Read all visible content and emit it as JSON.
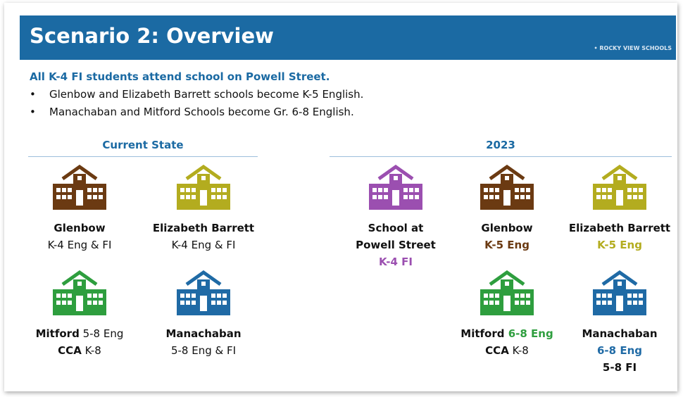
{
  "header": {
    "title": "Scenario 2: Overview",
    "brand": "• ROCKY VIEW SCHOOLS"
  },
  "lead": "All K-4 FI students attend school on Powell Street.",
  "bullets": [
    "Glenbow and Elizabeth Barrett schools become K-5 English.",
    "Manachaban and Mitford Schools become Gr. 6-8 English."
  ],
  "sections": [
    {
      "heading": "Current State",
      "schools": [
        {
          "color": "#6b3a12",
          "lines": [
            [
              {
                "text": "Glenbow",
                "bold": true
              }
            ],
            [
              {
                "text": "K-4 Eng & FI"
              }
            ]
          ]
        },
        {
          "color": "#b3ac1f",
          "lines": [
            [
              {
                "text": "Elizabeth Barrett",
                "bold": true
              }
            ],
            [
              {
                "text": "K-4 Eng & FI"
              }
            ]
          ]
        },
        {
          "color": "#2e9e3e",
          "lines": [
            [
              {
                "text": "Mitford",
                "bold": true
              },
              {
                "text": " 5-8 Eng"
              }
            ],
            [
              {
                "text": "CCA",
                "bold": true
              },
              {
                "text": " K-8"
              }
            ]
          ]
        },
        {
          "color": "#1f6aa5",
          "lines": [
            [
              {
                "text": "Manachaban",
                "bold": true
              }
            ],
            [
              {
                "text": "5-8 Eng & FI"
              }
            ]
          ]
        }
      ]
    },
    {
      "heading": "2023",
      "schools": [
        {
          "color": "#9b4fb0",
          "lines": [
            [
              {
                "text": "School at",
                "bold": true
              }
            ],
            [
              {
                "text": "Powell Street",
                "bold": true
              }
            ],
            [
              {
                "text": "K-4 FI",
                "bold": true,
                "color": "#9b4fb0"
              }
            ]
          ]
        },
        {
          "color": "#6b3a12",
          "lines": [
            [
              {
                "text": "Glenbow",
                "bold": true
              }
            ],
            [
              {
                "text": "K-5 Eng",
                "bold": true,
                "color": "#6b3a12"
              }
            ]
          ]
        },
        {
          "color": "#b3ac1f",
          "lines": [
            [
              {
                "text": "Elizabeth Barrett",
                "bold": true
              }
            ],
            [
              {
                "text": "K-5 Eng",
                "bold": true,
                "color": "#b3ac1f"
              }
            ]
          ]
        },
        {
          "color": "#2e9e3e",
          "lines": [
            [
              {
                "text": "Mitford",
                "bold": true
              },
              {
                "text": " 6-8 Eng",
                "bold": true,
                "color": "#2e9e3e"
              }
            ],
            [
              {
                "text": "CCA",
                "bold": true
              },
              {
                "text": " K-8"
              }
            ]
          ]
        },
        {
          "color": "#1f6aa5",
          "lines": [
            [
              {
                "text": "Manachaban",
                "bold": true
              }
            ],
            [
              {
                "text": "6-8 Eng",
                "bold": true,
                "color": "#1f6aa5"
              }
            ],
            [
              {
                "text": "5-8 FI",
                "bold": true
              }
            ]
          ]
        }
      ]
    }
  ]
}
